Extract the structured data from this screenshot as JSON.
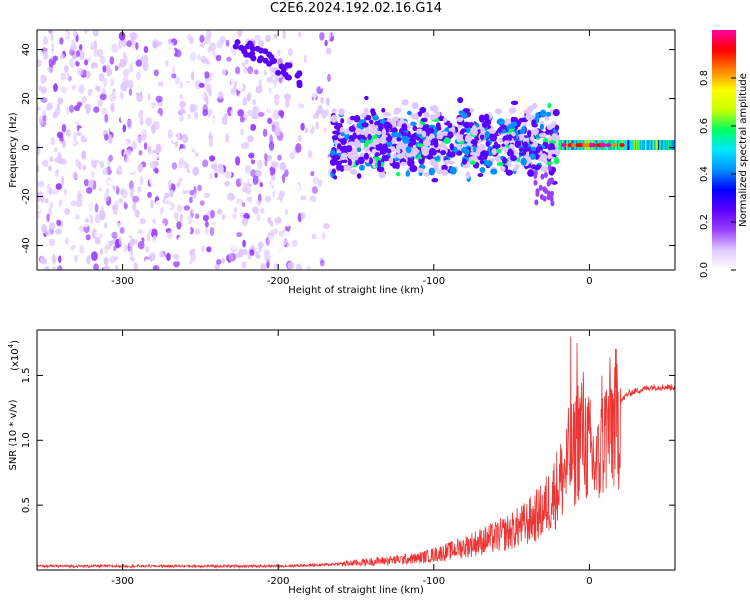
{
  "title": "C2E6.2024.192.02.16.G14",
  "colorbar": {
    "label": "Normalized spectral amplitude",
    "ticks": [
      "0.0",
      "0.2",
      "0.4",
      "0.6",
      "0.8"
    ],
    "tick_values": [
      0.0,
      0.2,
      0.4,
      0.6,
      0.8
    ],
    "range": [
      0,
      1
    ],
    "colormap": [
      "#ffffff",
      "#e0c8ff",
      "#9a40ff",
      "#5a00ff",
      "#0000ff",
      "#0090ff",
      "#00e8ff",
      "#00ff60",
      "#c8ff00",
      "#ffff00",
      "#ff8000",
      "#ff0000",
      "#ff00a0"
    ]
  },
  "chart_data": [
    {
      "type": "heatmap",
      "title": "",
      "xlabel": "Height of straight line (km)",
      "ylabel": "Frequency (Hz)",
      "xlim": [
        -355,
        55
      ],
      "ylim": [
        -50,
        48
      ],
      "xticks": [
        -300,
        -200,
        -100,
        0
      ],
      "xtick_labels": [
        "-300",
        "-200",
        "-100",
        "0"
      ],
      "yticks": [
        -40,
        -20,
        0,
        20,
        40
      ],
      "ytick_labels": [
        "-40",
        "-20",
        "0",
        "20",
        "40"
      ],
      "grid": false,
      "description_series": [
        {
          "region": "scattered noise",
          "x_range": [
            -355,
            -165
          ],
          "freq_range": [
            -50,
            48
          ],
          "amplitude_approx": 0.15
        },
        {
          "region": "band",
          "x_range": [
            -165,
            -20
          ],
          "freq_center": 2,
          "freq_width": 14,
          "amplitude_approx": 0.3
        },
        {
          "region": "band",
          "x_range": [
            -20,
            55
          ],
          "freq_center": 1,
          "freq_width": 4,
          "amplitude_approx": 0.6
        }
      ],
      "streak": {
        "x": [
          -230,
          -185
        ],
        "freq": [
          44,
          28
        ]
      }
    },
    {
      "type": "line",
      "title": "",
      "xlabel": "Height of straight line (km)",
      "ylabel": "SNR (10 * v/v)",
      "yscale_label": "(x10",
      "yscale_exp": "4",
      "xlim": [
        -355,
        55
      ],
      "ylim": [
        0,
        1.85
      ],
      "xticks": [
        -300,
        -200,
        -100,
        0
      ],
      "xtick_labels": [
        "-300",
        "-200",
        "-100",
        "0"
      ],
      "yticks": [
        0.5,
        1.0,
        1.5
      ],
      "ytick_labels": [
        "0.5",
        "1.0",
        "1.5"
      ],
      "color": "#ee3333",
      "series": [
        {
          "x": [
            -355,
            -300,
            -250,
            -200,
            -170,
            -150,
            -130,
            -110,
            -100,
            -90,
            -80,
            -70,
            -60,
            -50,
            -40,
            -30,
            -25,
            -20,
            -15,
            -12,
            -10,
            -8,
            -5,
            0,
            5,
            10,
            15,
            20,
            25,
            30,
            40,
            55
          ],
          "values": [
            0.03,
            0.03,
            0.03,
            0.03,
            0.04,
            0.06,
            0.08,
            0.1,
            0.13,
            0.16,
            0.2,
            0.24,
            0.28,
            0.33,
            0.4,
            0.5,
            0.6,
            0.72,
            0.85,
            1.0,
            0.95,
            1.1,
            1.2,
            1.0,
            0.85,
            1.15,
            1.25,
            1.3,
            1.36,
            1.38,
            1.41,
            1.41
          ]
        }
      ],
      "spikes": [
        {
          "x": -12,
          "y": 1.8
        },
        {
          "x": -8,
          "y": 1.75
        },
        {
          "x": 8,
          "y": 1.5
        },
        {
          "x": 20,
          "y": 1.4
        }
      ]
    }
  ]
}
